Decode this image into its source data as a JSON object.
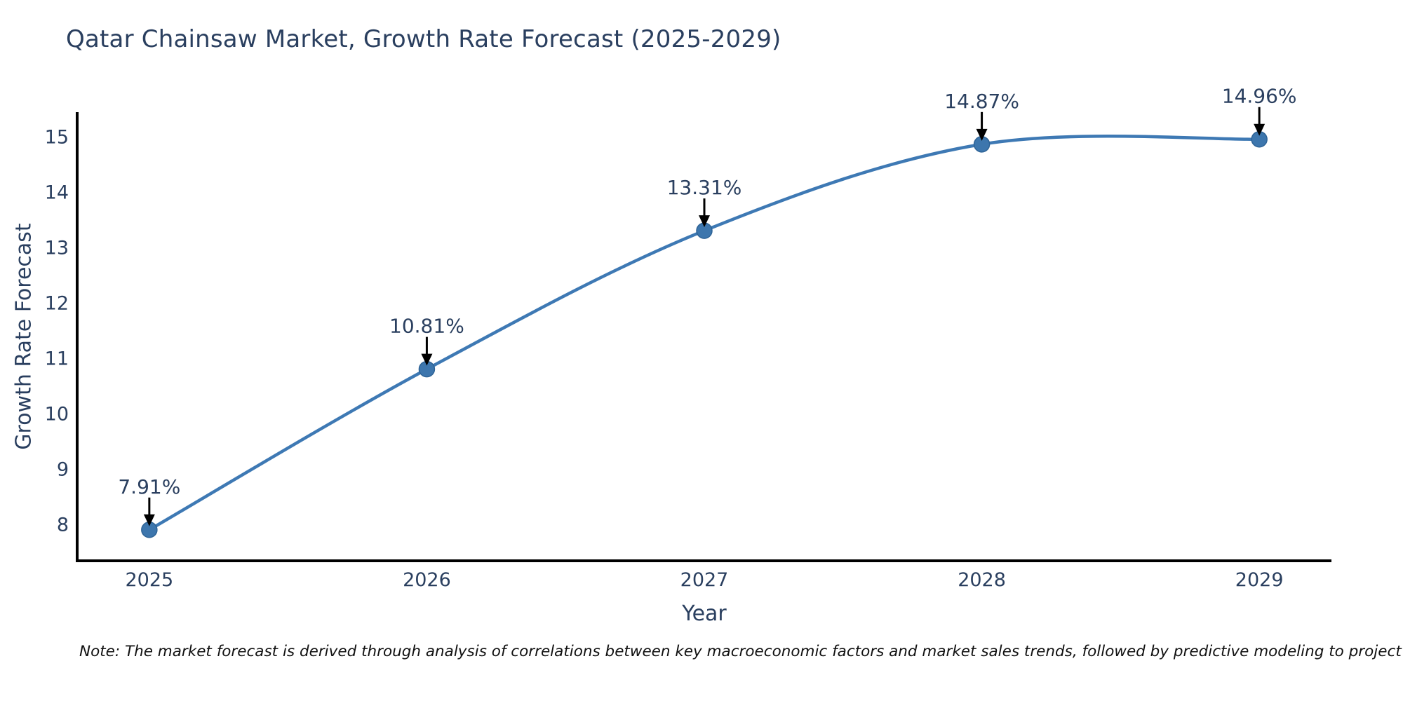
{
  "title": "Qatar Chainsaw Market, Growth Rate Forecast (2025-2029)",
  "note": "Note: The market forecast is derived through analysis of correlations between key macroeconomic factors and market sales trends, followed by predictive modeling to project future sales",
  "chart_data": {
    "type": "line",
    "title": "Qatar Chainsaw Market, Growth Rate Forecast (2025-2029)",
    "xlabel": "Year",
    "ylabel": "Growth Rate Forecast",
    "x": [
      2025,
      2026,
      2027,
      2028,
      2029
    ],
    "series": [
      {
        "name": "Growth Rate Forecast",
        "values": [
          7.91,
          10.81,
          13.31,
          14.87,
          14.96
        ]
      }
    ],
    "point_labels": [
      "7.91%",
      "10.81%",
      "13.31%",
      "14.87%",
      "14.96%"
    ],
    "xticks": [
      2025,
      2026,
      2027,
      2028,
      2029
    ],
    "yticks": [
      8,
      9,
      10,
      11,
      12,
      13,
      14,
      15
    ],
    "xlim": [
      2024.74,
      2029.26
    ],
    "ylim": [
      7.35,
      15.45
    ],
    "grid": false,
    "legend": false,
    "curve": "spline",
    "line_color": "#3e79b4",
    "marker_color": "#3d76ad",
    "marker_edge_color": "#2e6396",
    "axis_color": "#000000",
    "tick_color": "#2a3f5f",
    "annotation_text_color": "#2a3f5f",
    "annotation_arrow_color": "#000000"
  }
}
